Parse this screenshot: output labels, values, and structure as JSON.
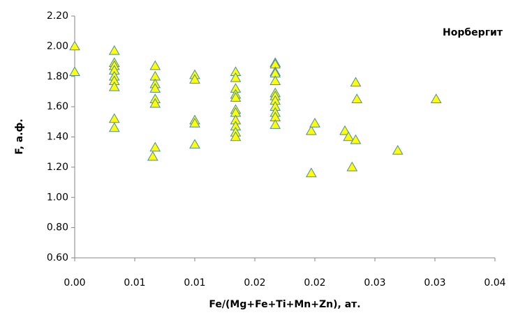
{
  "chart_data": {
    "type": "scatter",
    "annotation": "Норбергит",
    "x_label": "Fe/(Mg+Fe+Ti+Mn+Zn), ат.",
    "y_label": "F, а.ф.",
    "xlim": [
      0,
      0.035
    ],
    "xticks": [
      {
        "value": 0,
        "label": "0.00"
      },
      {
        "value": 0.005,
        "label": "0.01"
      },
      {
        "value": 0.01,
        "label": "0.01"
      },
      {
        "value": 0.015,
        "label": "0.02"
      },
      {
        "value": 0.02,
        "label": "0.02"
      },
      {
        "value": 0.025,
        "label": "0.03"
      },
      {
        "value": 0.03,
        "label": "0.03"
      },
      {
        "value": 0.035,
        "label": "0.04"
      }
    ],
    "ylim": [
      0.6,
      2.2
    ],
    "yticks": [
      {
        "value": 0.6,
        "label": "0.60"
      },
      {
        "value": 0.8,
        "label": "0.80"
      },
      {
        "value": 1,
        "label": "1.00"
      },
      {
        "value": 1.2,
        "label": "1.20"
      },
      {
        "value": 1.4,
        "label": "1.40"
      },
      {
        "value": 1.6,
        "label": "1.60"
      },
      {
        "value": 1.8,
        "label": "1.80"
      },
      {
        "value": 2,
        "label": "2.00"
      },
      {
        "value": 2.2,
        "label": "2.20"
      }
    ],
    "color": "#ffff00",
    "edge_color": "#4a8aa8",
    "x": [
      0,
      0,
      0.0033,
      0.0033,
      0.0033,
      0.0033,
      0.0033,
      0.0033,
      0.0033,
      0.0033,
      0.0033,
      0.0067,
      0.0067,
      0.0067,
      0.0067,
      0.0067,
      0.0067,
      0.0067,
      0.0065,
      0.01,
      0.01,
      0.01,
      0.01,
      0.01,
      0.0134,
      0.0134,
      0.0134,
      0.0134,
      0.0134,
      0.0134,
      0.0134,
      0.0134,
      0.0134,
      0.0134,
      0.0134,
      0.0167,
      0.0167,
      0.0167,
      0.0167,
      0.0167,
      0.0167,
      0.0167,
      0.0167,
      0.0167,
      0.0167,
      0.0167,
      0.0167,
      0.0197,
      0.0197,
      0.02,
      0.0225,
      0.0228,
      0.0231,
      0.0234,
      0.0234,
      0.0235,
      0.0269,
      0.0301
    ],
    "y": [
      2.0,
      1.83,
      1.97,
      1.89,
      1.87,
      1.84,
      1.8,
      1.77,
      1.73,
      1.52,
      1.46,
      1.87,
      1.8,
      1.75,
      1.72,
      1.65,
      1.62,
      1.33,
      1.27,
      1.81,
      1.78,
      1.51,
      1.49,
      1.35,
      1.83,
      1.79,
      1.72,
      1.68,
      1.66,
      1.58,
      1.56,
      1.51,
      1.47,
      1.43,
      1.4,
      1.89,
      1.88,
      1.83,
      1.82,
      1.77,
      1.69,
      1.67,
      1.64,
      1.6,
      1.56,
      1.53,
      1.48,
      1.44,
      1.16,
      1.49,
      1.44,
      1.4,
      1.2,
      1.76,
      1.38,
      1.65,
      1.31,
      1.65
    ]
  }
}
